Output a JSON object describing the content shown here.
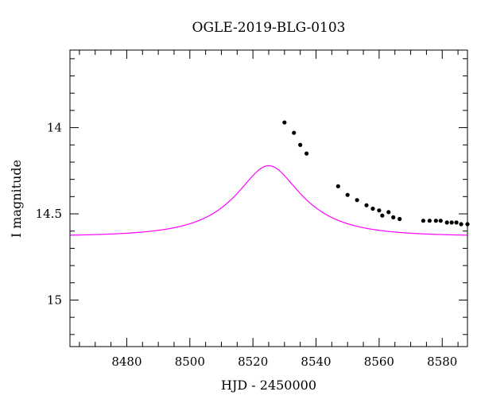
{
  "chart_data": {
    "type": "scatter",
    "title": "OGLE-2019-BLG-0103",
    "xlabel": "HJD - 2450000",
    "ylabel": "I magnitude",
    "xlim": [
      8462,
      8588
    ],
    "ylim": [
      15.27,
      13.55
    ],
    "y_inverted": true,
    "x_ticks": [
      8480,
      8500,
      8520,
      8540,
      8560,
      8580
    ],
    "y_ticks": [
      14,
      14.5,
      15
    ],
    "x_tick_labels": [
      "8480",
      "8500",
      "8520",
      "8540",
      "8560",
      "8580"
    ],
    "y_tick_labels": [
      "14",
      "14.5",
      "15"
    ],
    "grid": false,
    "colors": {
      "model": "#ff00ff",
      "points": "#000000"
    },
    "series": [
      {
        "kind": "points",
        "x": [
          8530.0,
          8533.0,
          8535.0,
          8537.0,
          8547.0,
          8550.0,
          8553.0,
          8556.0,
          8558.0,
          8560.0,
          8561.0,
          8563.0,
          8564.5,
          8566.5,
          8574.0,
          8576.0,
          8578.0,
          8579.5,
          8581.5,
          8583.0,
          8584.5,
          8586.0,
          8588.0
        ],
        "y": [
          13.97,
          14.03,
          14.1,
          14.15,
          14.34,
          14.39,
          14.42,
          14.45,
          14.47,
          14.48,
          14.51,
          14.49,
          14.52,
          14.53,
          14.54,
          14.54,
          14.54,
          14.54,
          14.55,
          14.55,
          14.55,
          14.56,
          14.56
        ]
      },
      {
        "kind": "model",
        "t0": 8525,
        "tE": 21.5,
        "u0": 0.45,
        "fs": 0.33,
        "baseline": 14.63
      }
    ]
  }
}
